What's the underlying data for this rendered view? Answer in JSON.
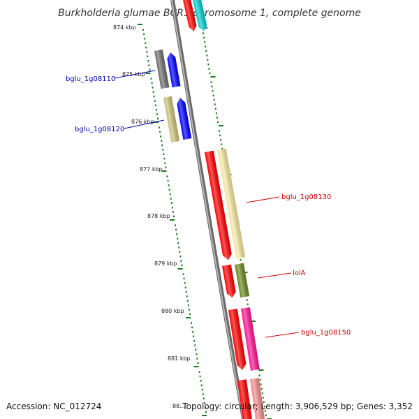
{
  "title": "Burkholderia glumae BCR1 chromosome 1, complete genome",
  "footer": {
    "accession": "Accession: NC_012724",
    "topology": "Topology: circular; Length: 3,906,529 bp; Genes: 3,352"
  },
  "ticks": [
    "874 kbp",
    "875 kbp",
    "876 kbp",
    "877 kbp",
    "878 kbp",
    "879 kbp",
    "880 kbp",
    "881 kbp",
    "88..."
  ],
  "gene_labels": [
    {
      "text": "bglu_1g08110",
      "color": "#0000aa"
    },
    {
      "text": "bglu_1g08120",
      "color": "#0000aa"
    },
    {
      "text": "bglu_1g08130",
      "color": "#cc0000"
    },
    {
      "text": "lolA",
      "color": "#cc0000"
    },
    {
      "text": "bglu_1g08150",
      "color": "#cc0000"
    }
  ],
  "colors": {
    "backbone": "#8c8c8c",
    "tick": "#1b7a1b",
    "red": "#ff0000",
    "cyan": "#00cccc",
    "gray": "#6e6e6e",
    "blue": "#0000ff",
    "khaki": "#c8c07a",
    "pale_yellow": "#f3e6a0",
    "olive": "#6b8a1e",
    "magenta": "#ff1493",
    "pink": "#f08a8a"
  }
}
